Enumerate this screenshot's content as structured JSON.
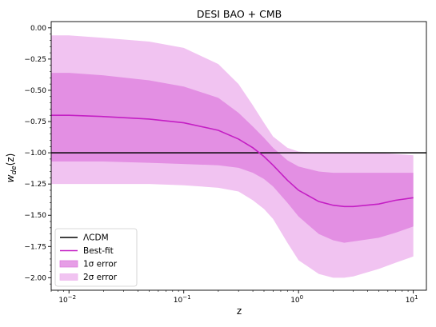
{
  "chart_data": {
    "type": "area",
    "title": "DESI BAO + CMB",
    "xlabel": "z",
    "ylabel_main": "w",
    "ylabel_sub": "de",
    "ylabel_arg": "(z)",
    "x_scale": "log",
    "xlim": [
      0.007,
      13
    ],
    "ylim": [
      -2.1,
      0.05
    ],
    "x_ticks": [
      {
        "value": 0.01,
        "base": "10",
        "exp": "−2"
      },
      {
        "value": 0.1,
        "base": "10",
        "exp": "−1"
      },
      {
        "value": 1,
        "base": "10",
        "exp": "0"
      },
      {
        "value": 10,
        "base": "10",
        "exp": "1"
      }
    ],
    "y_ticks": [
      {
        "value": 0,
        "label": "0.00"
      },
      {
        "value": -0.25,
        "label": "−0.25"
      },
      {
        "value": -0.5,
        "label": "−0.50"
      },
      {
        "value": -0.75,
        "label": "−0.75"
      },
      {
        "value": -1,
        "label": "−1.00"
      },
      {
        "value": -1.25,
        "label": "−1.25"
      },
      {
        "value": -1.5,
        "label": "−1.50"
      },
      {
        "value": -1.75,
        "label": "−1.75"
      },
      {
        "value": -2,
        "label": "−2.00"
      }
    ],
    "x": [
      0.007,
      0.01,
      0.02,
      0.05,
      0.1,
      0.2,
      0.3,
      0.4,
      0.5,
      0.6,
      0.8,
      1.0,
      1.5,
      2.0,
      2.5,
      3.0,
      5.0,
      7.0,
      10.0
    ],
    "series": [
      {
        "name": "ΛCDM",
        "kind": "hline",
        "y": -1.0,
        "color": "#000000"
      },
      {
        "name": "Best-fit",
        "kind": "line",
        "color": "#c41ec4",
        "values": [
          -0.7,
          -0.7,
          -0.71,
          -0.73,
          -0.76,
          -0.82,
          -0.89,
          -0.96,
          -1.03,
          -1.1,
          -1.22,
          -1.3,
          -1.39,
          -1.42,
          -1.43,
          -1.43,
          -1.41,
          -1.38,
          -1.36
        ]
      },
      {
        "name": "1σ error",
        "kind": "band",
        "color": "#dd7ddd",
        "alpha": 0.75,
        "upper": [
          -0.36,
          -0.36,
          -0.38,
          -0.42,
          -0.47,
          -0.56,
          -0.68,
          -0.79,
          -0.88,
          -0.96,
          -1.06,
          -1.11,
          -1.15,
          -1.16,
          -1.16,
          -1.16,
          -1.16,
          -1.16,
          -1.16
        ],
        "lower": [
          -1.07,
          -1.07,
          -1.07,
          -1.08,
          -1.09,
          -1.1,
          -1.12,
          -1.16,
          -1.21,
          -1.27,
          -1.4,
          -1.51,
          -1.65,
          -1.7,
          -1.72,
          -1.71,
          -1.68,
          -1.64,
          -1.59
        ]
      },
      {
        "name": "2σ error",
        "kind": "band",
        "color": "#eeb8ee",
        "alpha": 0.85,
        "upper": [
          -0.06,
          -0.06,
          -0.08,
          -0.11,
          -0.16,
          -0.29,
          -0.45,
          -0.62,
          -0.76,
          -0.87,
          -0.96,
          -0.99,
          -1.0,
          -1.0,
          -1.0,
          -1.0,
          -1.0,
          -1.01,
          -1.02
        ],
        "lower": [
          -1.25,
          -1.25,
          -1.25,
          -1.25,
          -1.26,
          -1.28,
          -1.31,
          -1.38,
          -1.45,
          -1.53,
          -1.72,
          -1.86,
          -1.97,
          -2.0,
          -2.0,
          -1.99,
          -1.93,
          -1.88,
          -1.83
        ]
      }
    ],
    "legend_position": "lower-left",
    "grid": false
  }
}
